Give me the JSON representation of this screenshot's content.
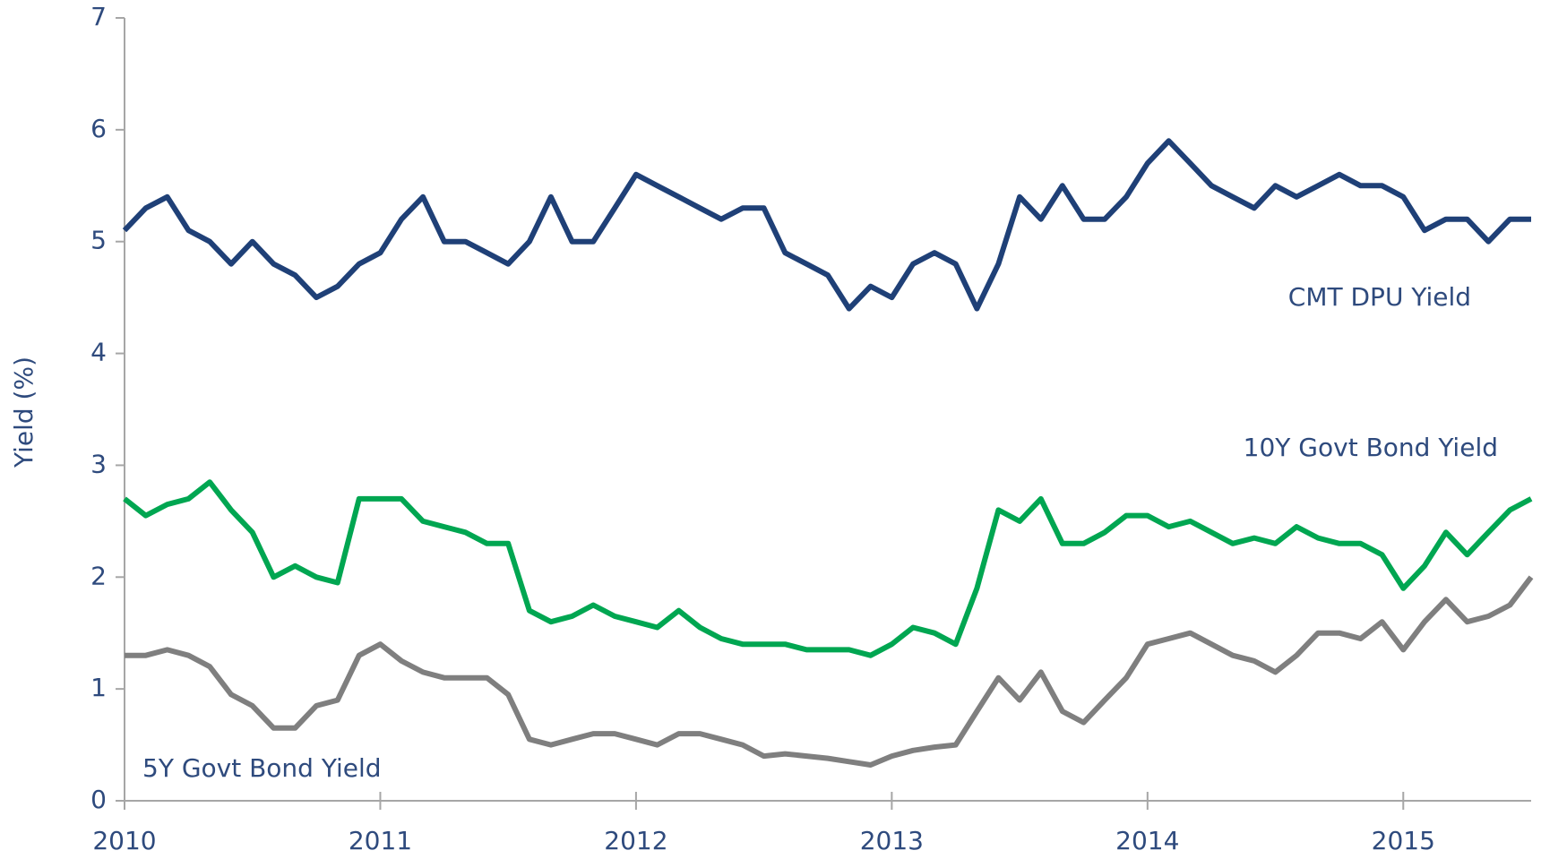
{
  "chart_data": {
    "type": "line",
    "ylabel": "Yield (%)",
    "x": [
      2010,
      2010.083,
      2010.167,
      2010.25,
      2010.333,
      2010.417,
      2010.5,
      2010.583,
      2010.667,
      2010.75,
      2010.833,
      2010.917,
      2011,
      2011.083,
      2011.167,
      2011.25,
      2011.333,
      2011.417,
      2011.5,
      2011.583,
      2011.667,
      2011.75,
      2011.833,
      2011.917,
      2012,
      2012.083,
      2012.167,
      2012.25,
      2012.333,
      2012.417,
      2012.5,
      2012.583,
      2012.667,
      2012.75,
      2012.833,
      2012.917,
      2013,
      2013.083,
      2013.167,
      2013.25,
      2013.333,
      2013.417,
      2013.5,
      2013.583,
      2013.667,
      2013.75,
      2013.833,
      2013.917,
      2014,
      2014.083,
      2014.167,
      2014.25,
      2014.333,
      2014.417,
      2014.5,
      2014.583,
      2014.667,
      2014.75,
      2014.833,
      2014.917,
      2015,
      2015.083,
      2015.167,
      2015.25,
      2015.333,
      2015.417,
      2015.5
    ],
    "series": [
      {
        "name": "CMT DPU Yield",
        "color": "#1f4077",
        "values": [
          5.1,
          5.3,
          5.4,
          5.1,
          5.0,
          4.8,
          5.0,
          4.8,
          4.7,
          4.5,
          4.6,
          4.8,
          4.9,
          5.2,
          5.4,
          5.0,
          5.0,
          4.9,
          4.8,
          5.0,
          5.4,
          5.0,
          5.0,
          5.3,
          5.6,
          5.5,
          5.4,
          5.3,
          5.2,
          5.3,
          5.3,
          4.9,
          4.8,
          4.7,
          4.4,
          4.6,
          4.5,
          4.8,
          4.9,
          4.8,
          4.4,
          4.8,
          5.4,
          5.2,
          5.5,
          5.2,
          5.2,
          5.4,
          5.7,
          5.9,
          5.7,
          5.5,
          5.4,
          5.3,
          5.5,
          5.4,
          5.5,
          5.6,
          5.5,
          5.5,
          5.4,
          5.1,
          5.2,
          5.2,
          5.0,
          5.2,
          5.2
        ]
      },
      {
        "name": "10Y Govt Bond Yield",
        "color": "#00a651",
        "values": [
          2.7,
          2.55,
          2.65,
          2.7,
          2.85,
          2.6,
          2.4,
          2.0,
          2.1,
          2.0,
          1.95,
          2.7,
          2.7,
          2.7,
          2.5,
          2.45,
          2.4,
          2.3,
          2.3,
          1.7,
          1.6,
          1.65,
          1.75,
          1.65,
          1.6,
          1.55,
          1.7,
          1.55,
          1.45,
          1.4,
          1.4,
          1.4,
          1.35,
          1.35,
          1.35,
          1.3,
          1.4,
          1.55,
          1.5,
          1.4,
          1.9,
          2.6,
          2.5,
          2.7,
          2.3,
          2.3,
          2.4,
          2.55,
          2.55,
          2.45,
          2.5,
          2.4,
          2.3,
          2.35,
          2.3,
          2.45,
          2.35,
          2.3,
          2.3,
          2.2,
          1.9,
          2.1,
          2.4,
          2.2,
          2.4,
          2.6,
          2.7
        ]
      },
      {
        "name": "5Y Govt Bond Yield",
        "color": "#7f7f7f",
        "values": [
          1.3,
          1.3,
          1.35,
          1.3,
          1.2,
          0.95,
          0.85,
          0.65,
          0.65,
          0.85,
          0.9,
          1.3,
          1.4,
          1.25,
          1.15,
          1.1,
          1.1,
          1.1,
          0.95,
          0.55,
          0.5,
          0.55,
          0.6,
          0.6,
          0.55,
          0.5,
          0.6,
          0.6,
          0.55,
          0.5,
          0.4,
          0.42,
          0.4,
          0.38,
          0.35,
          0.32,
          0.4,
          0.45,
          0.48,
          0.5,
          0.8,
          1.1,
          0.9,
          1.15,
          0.8,
          0.7,
          0.9,
          1.1,
          1.4,
          1.45,
          1.5,
          1.4,
          1.3,
          1.25,
          1.15,
          1.3,
          1.5,
          1.5,
          1.45,
          1.6,
          1.35,
          1.6,
          1.8,
          1.6,
          1.65,
          1.75,
          2.0
        ]
      }
    ],
    "xlim": [
      2010,
      2015.5
    ],
    "xticks": [
      2010,
      2011,
      2012,
      2013,
      2014,
      2015
    ],
    "ylim": [
      0,
      7
    ],
    "yticks": [
      0,
      1,
      2,
      3,
      4,
      5,
      6,
      7
    ],
    "grid": false
  }
}
